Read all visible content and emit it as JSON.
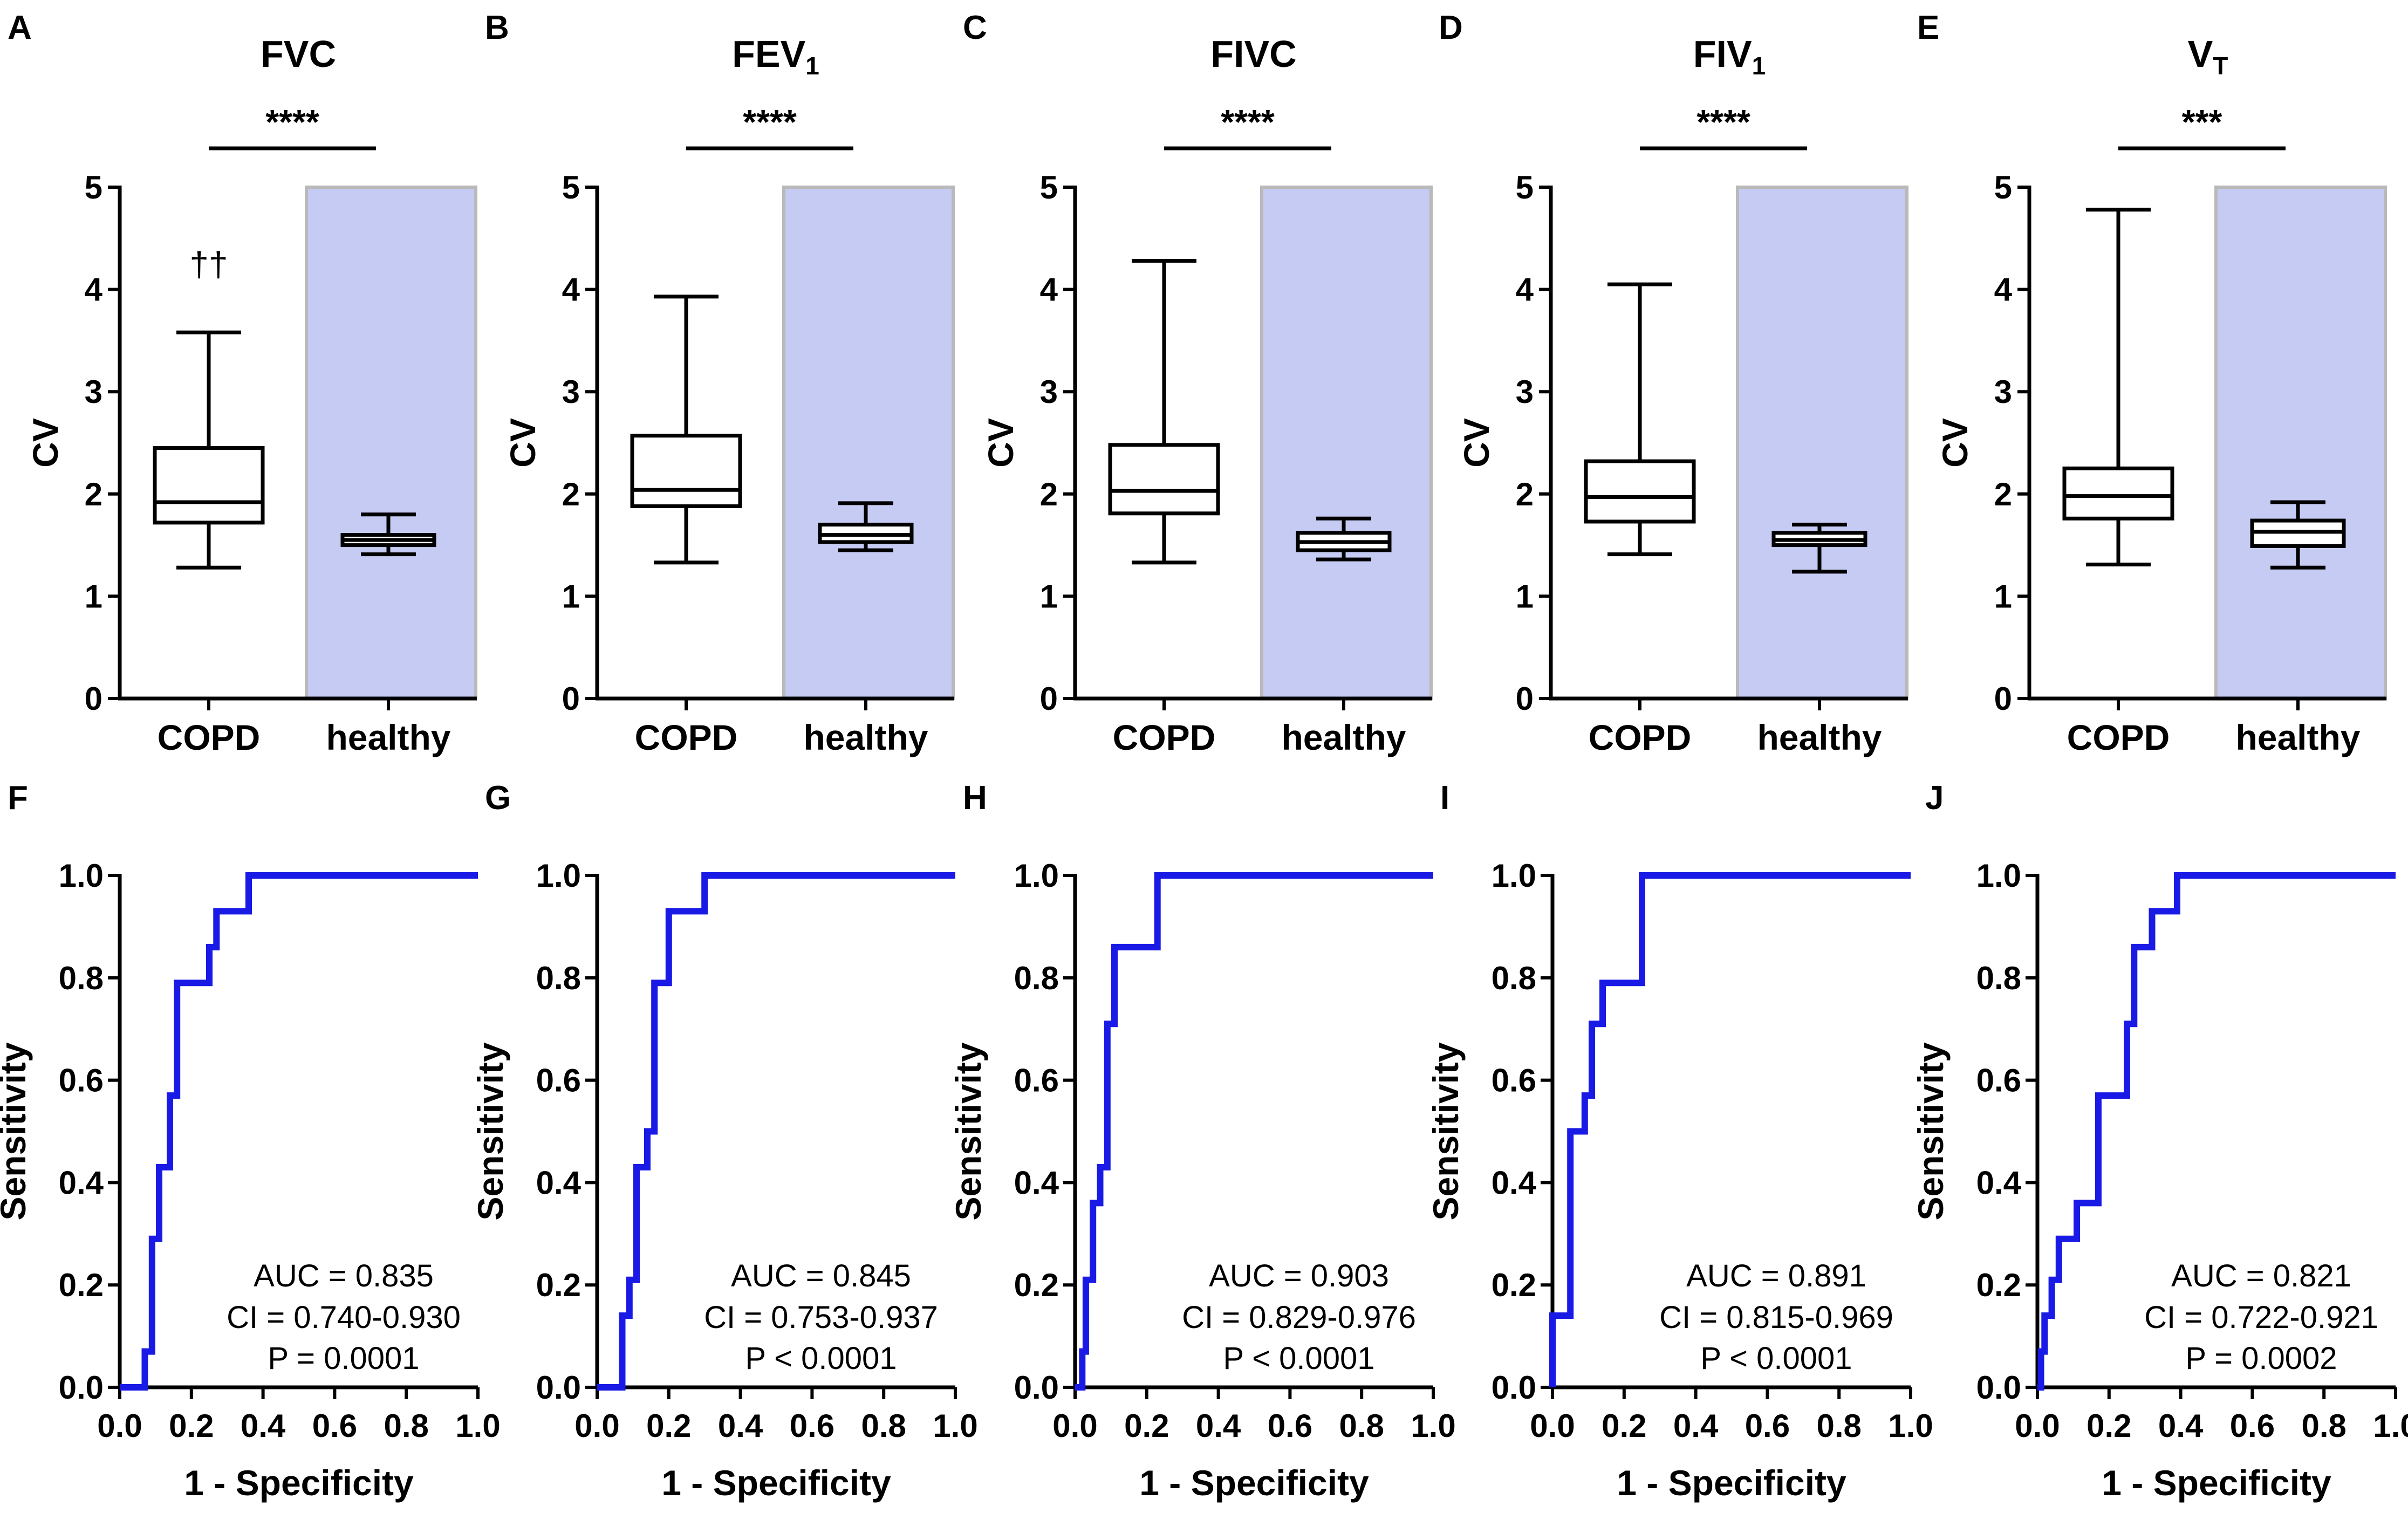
{
  "colors": {
    "roc_line": "#1a1ae6",
    "healthy_shade": "#c5cbf3",
    "shade_border": "#b9b9b9",
    "axis": "#000000"
  },
  "box_ylabel": "CV",
  "box_yticks": [
    "0",
    "1",
    "2",
    "3",
    "4",
    "5"
  ],
  "roc_xlabel": "1 - Specificity",
  "roc_ylabel": "Sensitivity",
  "roc_ticks": [
    "0.0",
    "0.2",
    "0.4",
    "0.6",
    "0.8",
    "1.0"
  ],
  "chart_data": [
    {
      "type": "box",
      "panel": "A",
      "title": "FVC",
      "title_sub": "",
      "categories": [
        "COPD",
        "healthy"
      ],
      "ylim": [
        0,
        5
      ],
      "ylabel": "CV",
      "significance": "****",
      "annotation": "††",
      "boxes": [
        {
          "group": "COPD",
          "min": 1.28,
          "q1": 1.72,
          "median": 1.92,
          "q3": 2.45,
          "max": 3.58
        },
        {
          "group": "healthy",
          "min": 1.41,
          "q1": 1.5,
          "median": 1.55,
          "q3": 1.6,
          "max": 1.8
        }
      ]
    },
    {
      "type": "box",
      "panel": "B",
      "title": "FEV",
      "title_sub": "1",
      "categories": [
        "COPD",
        "healthy"
      ],
      "ylim": [
        0,
        5
      ],
      "ylabel": "CV",
      "significance": "****",
      "annotation": "",
      "boxes": [
        {
          "group": "COPD",
          "min": 1.33,
          "q1": 1.88,
          "median": 2.04,
          "q3": 2.57,
          "max": 3.93
        },
        {
          "group": "healthy",
          "min": 1.45,
          "q1": 1.53,
          "median": 1.6,
          "q3": 1.7,
          "max": 1.91
        }
      ]
    },
    {
      "type": "box",
      "panel": "C",
      "title": "FIVC",
      "title_sub": "",
      "categories": [
        "COPD",
        "healthy"
      ],
      "ylim": [
        0,
        5
      ],
      "ylabel": "CV",
      "significance": "****",
      "annotation": "",
      "boxes": [
        {
          "group": "COPD",
          "min": 1.33,
          "q1": 1.81,
          "median": 2.03,
          "q3": 2.48,
          "max": 4.28
        },
        {
          "group": "healthy",
          "min": 1.36,
          "q1": 1.45,
          "median": 1.53,
          "q3": 1.62,
          "max": 1.76
        }
      ]
    },
    {
      "type": "box",
      "panel": "D",
      "title": "FIV",
      "title_sub": "1",
      "categories": [
        "COPD",
        "healthy"
      ],
      "ylim": [
        0,
        5
      ],
      "ylabel": "CV",
      "significance": "****",
      "annotation": "",
      "boxes": [
        {
          "group": "COPD",
          "min": 1.41,
          "q1": 1.73,
          "median": 1.97,
          "q3": 2.32,
          "max": 4.05
        },
        {
          "group": "healthy",
          "min": 1.24,
          "q1": 1.5,
          "median": 1.55,
          "q3": 1.62,
          "max": 1.7
        }
      ]
    },
    {
      "type": "box",
      "panel": "E",
      "title": "V",
      "title_sub": "T",
      "categories": [
        "COPD",
        "healthy"
      ],
      "ylim": [
        0,
        5
      ],
      "ylabel": "CV",
      "significance": "***",
      "annotation": "",
      "boxes": [
        {
          "group": "COPD",
          "min": 1.31,
          "q1": 1.76,
          "median": 1.98,
          "q3": 2.25,
          "max": 4.78
        },
        {
          "group": "healthy",
          "min": 1.28,
          "q1": 1.49,
          "median": 1.63,
          "q3": 1.74,
          "max": 1.92
        }
      ]
    },
    {
      "type": "line",
      "panel": "F",
      "xlabel": "1 - Specificity",
      "ylabel": "Sensitivity",
      "xlim": [
        0,
        1
      ],
      "ylim": [
        0,
        1
      ],
      "auc": "AUC = 0.835",
      "ci": "CI = 0.740-0.930",
      "p": "P = 0.0001",
      "x": [
        0,
        0.07,
        0.07,
        0.09,
        0.09,
        0.11,
        0.11,
        0.14,
        0.14,
        0.16,
        0.16,
        0.25,
        0.25,
        0.27,
        0.27,
        0.36,
        0.36,
        1.0
      ],
      "y": [
        0,
        0,
        0.07,
        0.07,
        0.29,
        0.29,
        0.43,
        0.43,
        0.57,
        0.57,
        0.79,
        0.79,
        0.86,
        0.86,
        0.93,
        0.93,
        1.0,
        1.0
      ]
    },
    {
      "type": "line",
      "panel": "G",
      "xlabel": "1 - Specificity",
      "ylabel": "Sensitivity",
      "xlim": [
        0,
        1
      ],
      "ylim": [
        0,
        1
      ],
      "auc": "AUC = 0.845",
      "ci": "CI = 0.753-0.937",
      "p": "P  < 0.0001",
      "x": [
        0,
        0.07,
        0.07,
        0.09,
        0.09,
        0.11,
        0.11,
        0.14,
        0.14,
        0.16,
        0.16,
        0.2,
        0.2,
        0.27,
        0.27,
        0.3,
        0.3,
        1.0
      ],
      "y": [
        0,
        0,
        0.14,
        0.14,
        0.21,
        0.21,
        0.43,
        0.43,
        0.5,
        0.5,
        0.79,
        0.79,
        0.93,
        0.93,
        0.93,
        0.93,
        1.0,
        1.0
      ]
    },
    {
      "type": "line",
      "panel": "H",
      "xlabel": "1 - Specificity",
      "ylabel": "Sensitivity",
      "xlim": [
        0,
        1
      ],
      "ylim": [
        0,
        1
      ],
      "auc": "AUC = 0.903",
      "ci": "CI = 0.829-0.976",
      "p": "P  < 0.0001",
      "x": [
        0,
        0.02,
        0.02,
        0.03,
        0.03,
        0.05,
        0.05,
        0.07,
        0.07,
        0.09,
        0.09,
        0.11,
        0.11,
        0.23,
        0.23,
        1.0
      ],
      "y": [
        0,
        0,
        0.07,
        0.07,
        0.21,
        0.21,
        0.36,
        0.36,
        0.43,
        0.43,
        0.71,
        0.71,
        0.86,
        0.86,
        1.0,
        1.0
      ]
    },
    {
      "type": "line",
      "panel": "I",
      "xlabel": "1 - Specificity",
      "ylabel": "Sensitivity",
      "xlim": [
        0,
        1
      ],
      "ylim": [
        0,
        1
      ],
      "auc": "AUC = 0.891",
      "ci": "CI = 0.815-0.969",
      "p": "P  < 0.0001",
      "x": [
        0,
        0,
        0.05,
        0.05,
        0.09,
        0.09,
        0.11,
        0.11,
        0.14,
        0.14,
        0.18,
        0.18,
        0.25,
        0.25,
        1.0
      ],
      "y": [
        0,
        0.14,
        0.14,
        0.5,
        0.5,
        0.57,
        0.57,
        0.71,
        0.71,
        0.79,
        0.79,
        0.79,
        0.79,
        1.0,
        1.0
      ]
    },
    {
      "type": "line",
      "panel": "J",
      "xlabel": "1 - Specificity",
      "ylabel": "Sensitivity",
      "xlim": [
        0,
        1
      ],
      "ylim": [
        0,
        1
      ],
      "auc": "AUC = 0.821",
      "ci": "CI = 0.722-0.921",
      "p": "P =  0.0002",
      "x": [
        0,
        0.01,
        0.01,
        0.02,
        0.02,
        0.04,
        0.04,
        0.06,
        0.06,
        0.11,
        0.11,
        0.17,
        0.17,
        0.25,
        0.25,
        0.27,
        0.27,
        0.32,
        0.32,
        0.36,
        0.36,
        0.39,
        0.39,
        1.0
      ],
      "y": [
        0,
        0,
        0.07,
        0.07,
        0.14,
        0.14,
        0.21,
        0.21,
        0.29,
        0.29,
        0.36,
        0.36,
        0.57,
        0.57,
        0.71,
        0.71,
        0.86,
        0.86,
        0.93,
        0.93,
        0.93,
        0.93,
        1.0,
        1.0
      ]
    }
  ]
}
